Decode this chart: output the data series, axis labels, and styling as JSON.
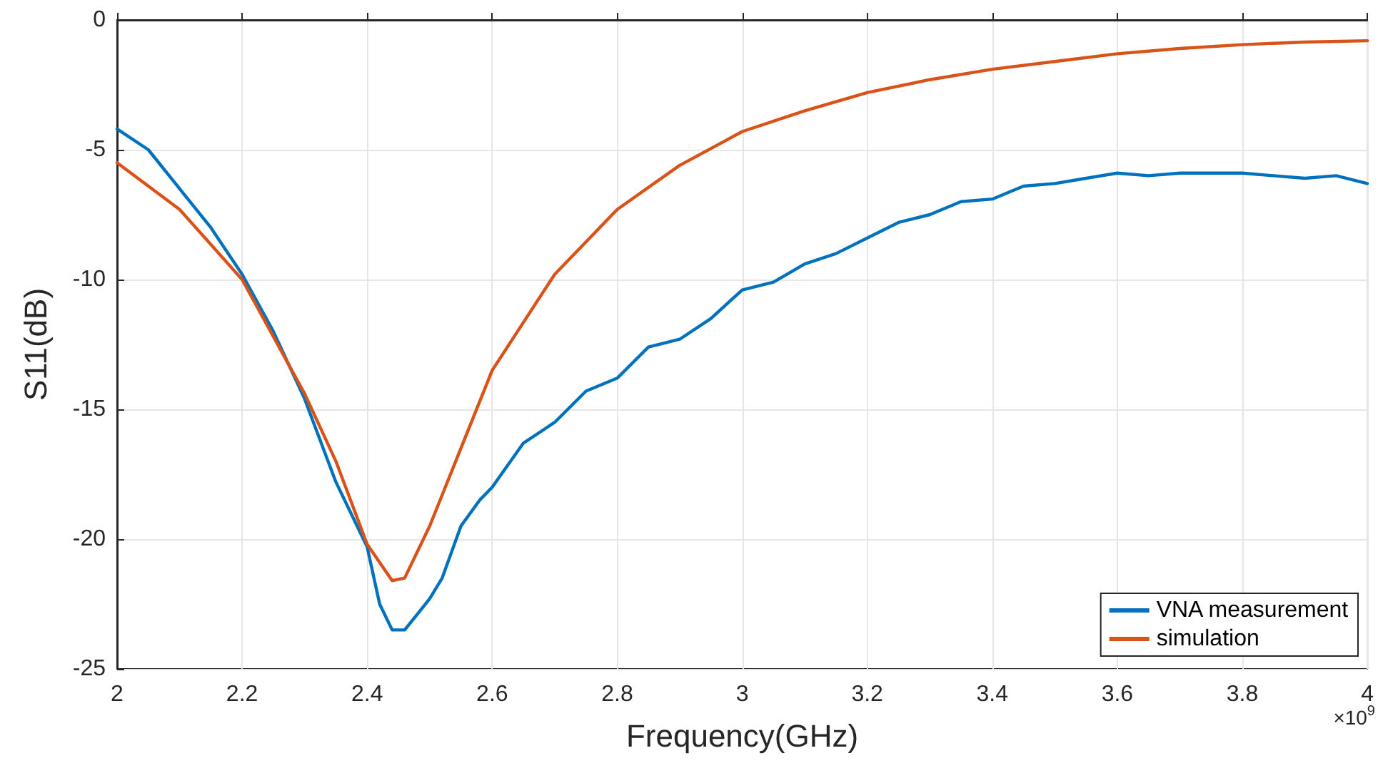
{
  "chart_data": {
    "type": "line",
    "xlabel": "Frequency(GHz)",
    "ylabel": "S11(dB)",
    "annotations": [
      "×10$^{9}$"
    ],
    "xlim": [
      2,
      4
    ],
    "xticks": [
      2,
      2.2,
      2.4,
      2.6,
      2.8,
      3,
      3.2,
      3.4,
      3.6,
      3.8,
      4
    ],
    "ylim": [
      -25,
      0
    ],
    "yticks": [
      -25,
      -20,
      -15,
      -10,
      -5,
      0
    ],
    "grid": true,
    "legend": "bottom right",
    "marker": "none",
    "line_style": "solid",
    "series": [
      {
        "name": "VNA measurement",
        "color": "#0072bd",
        "x": [
          2,
          2.05,
          2.1,
          2.15,
          2.2,
          2.25,
          2.3,
          2.35,
          2.4,
          2.42,
          2.44,
          2.46,
          2.48,
          2.5,
          2.52,
          2.55,
          2.58,
          2.6,
          2.65,
          2.7,
          2.75,
          2.8,
          2.85,
          2.9,
          2.95,
          3,
          3.05,
          3.1,
          3.15,
          3.2,
          3.25,
          3.3,
          3.35,
          3.4,
          3.45,
          3.5,
          3.55,
          3.6,
          3.65,
          3.7,
          3.75,
          3.8,
          3.85,
          3.9,
          3.95,
          4
        ],
        "values": [
          -4.2,
          -5.0,
          -6.5,
          -8.0,
          -9.8,
          -12.0,
          -14.6,
          -17.8,
          -20.3,
          -22.5,
          -23.5,
          -23.5,
          -22.9,
          -22.3,
          -21.5,
          -19.5,
          -18.5,
          -18.0,
          -16.3,
          -15.5,
          -14.3,
          -13.8,
          -12.6,
          -12.3,
          -11.5,
          -10.4,
          -10.1,
          -9.4,
          -9.0,
          -8.4,
          -7.8,
          -7.5,
          -7.0,
          -6.9,
          -6.4,
          -6.3,
          -6.1,
          -5.9,
          -6.0,
          -5.9,
          -5.9,
          -5.9,
          -6.0,
          -6.1,
          -6.0,
          -6.3
        ]
      },
      {
        "name": "simulation",
        "color": "#d95319",
        "x": [
          2,
          2.1,
          2.2,
          2.3,
          2.35,
          2.4,
          2.44,
          2.46,
          2.5,
          2.55,
          2.6,
          2.7,
          2.8,
          2.9,
          3,
          3.1,
          3.2,
          3.3,
          3.4,
          3.5,
          3.6,
          3.7,
          3.8,
          3.9,
          4
        ],
        "values": [
          -5.5,
          -7.3,
          -10.0,
          -14.4,
          -17.0,
          -20.2,
          -21.6,
          -21.5,
          -19.5,
          -16.5,
          -13.5,
          -9.8,
          -7.3,
          -5.6,
          -4.3,
          -3.5,
          -2.8,
          -2.3,
          -1.9,
          -1.6,
          -1.3,
          -1.1,
          -0.95,
          -0.85,
          -0.8
        ]
      }
    ]
  }
}
